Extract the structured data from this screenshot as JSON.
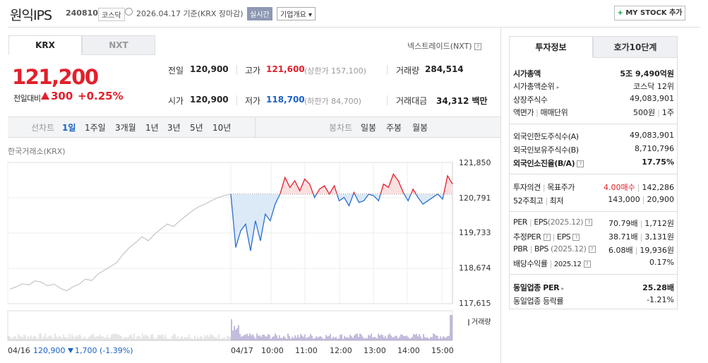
{
  "header": {
    "name": "원익IPS",
    "code": "240810",
    "market": "코스닥",
    "date": "2026.04.17 기준(KRX 장마감)",
    "realtime": "실시간",
    "overview": "기업개요 ▾",
    "mystock": "MY STOCK 추가",
    "mystock_plus": "+"
  },
  "tabs": {
    "krx": "KRX",
    "nxt": "NXT",
    "nxt_label": "넥스트레이드(NXT)"
  },
  "price": {
    "current": "121,200",
    "prev_label": "전일대비",
    "change": "300",
    "change_pct": "+0.25%"
  },
  "quote": {
    "prev_label": "전일",
    "prev": "120,900",
    "high_label": "고가",
    "high": "121,600",
    "upper_limit": "(상한가 157,100)",
    "volume_label": "거래량",
    "volume": "284,514",
    "open_label": "시가",
    "open": "120,900",
    "low_label": "저가",
    "low": "118,700",
    "lower_limit": "(하한가 84,700)",
    "amount_label": "거래대금",
    "amount": "34,312",
    "amount_unit": "백만"
  },
  "period_bar": {
    "line_label": "선차트",
    "periods": [
      "1일",
      "1주일",
      "3개월",
      "1년",
      "3년",
      "5년",
      "10년"
    ],
    "active": "1일",
    "candle_label": "봉차트",
    "candles": [
      "일봉",
      "주봉",
      "월봉"
    ]
  },
  "chart_data": {
    "type": "line",
    "title": "한국거래소(KRX)",
    "y_ticks": [
      "121,850",
      "120,791",
      "119,733",
      "118,674",
      "117,615"
    ],
    "ylim": [
      117615,
      121850
    ],
    "baseline": 120900,
    "x_ticks": [
      "04/16",
      "04/17",
      "10:00",
      "11:00",
      "12:00",
      "13:00",
      "14:00",
      "15:00"
    ],
    "volume_label": "거래량",
    "prev_day_series": [
      118050,
      118120,
      118210,
      118180,
      118300,
      118260,
      118150,
      118200,
      118080,
      118000,
      118120,
      118200,
      118350,
      118310,
      118500,
      118620,
      118730,
      118850,
      119100,
      119300,
      119450,
      119620,
      119500,
      119700,
      119850,
      120000,
      119930,
      120100,
      120250,
      120400,
      120520,
      120600,
      120700,
      120790,
      120850,
      120900
    ],
    "today_series": [
      120900,
      119300,
      119800,
      120000,
      119200,
      120100,
      119500,
      120300,
      120100,
      120600,
      120900,
      121400,
      121100,
      121300,
      121000,
      121350,
      121200,
      120800,
      121050,
      121150,
      120900,
      121150,
      120700,
      120800,
      120550,
      120950,
      120650,
      120700,
      120900,
      120850,
      120700,
      121200,
      121100,
      121500,
      121300,
      120950,
      120700,
      121050,
      120800,
      120600,
      120700,
      120800,
      120900,
      120750,
      121450,
      121200
    ]
  },
  "prev_day_info": {
    "price": "120,900",
    "change": "1,700",
    "pct": "(-1.39%)"
  },
  "right": {
    "tab_invest": "투자정보",
    "tab_hoga": "호가10단계",
    "rows": {
      "mktcap_label": "시가총액",
      "mktcap": "5조 9,490억원",
      "mktcap_rank_label": "시가총액순위",
      "mktcap_rank": "코스닥 12위",
      "shares_label": "상장주식수",
      "shares": "49,083,901",
      "par_label": "액면가",
      "trade_unit_label": "매매단위",
      "par": "500원",
      "trade_unit": "1주",
      "foreign_limit_label": "외국인한도주식수(A)",
      "foreign_limit": "49,083,901",
      "foreign_hold_label": "외국인보유주식수(B)",
      "foreign_hold": "8,710,796",
      "foreign_ratio_label": "외국인소진율(B/A)",
      "foreign_ratio": "17.75%",
      "opinion_label": "투자의견",
      "target_label": "목표주가",
      "opinion": "4.00매수",
      "target": "142,286",
      "w52_label_high": "52주최고",
      "w52_label_low": "최저",
      "w52_high": "143,000",
      "w52_low": "20,900",
      "per_label": "PER",
      "eps_label": "EPS",
      "eps_year": "(2025.12)",
      "per": "70.79배",
      "eps": "1,712원",
      "est_per_label": "추정PER",
      "est_eps_label": "EPS",
      "est_per": "38.71배",
      "est_eps": "3,131원",
      "pbr_label": "PBR",
      "bps_label": "BPS",
      "bps_year": "(2025.12)",
      "pbr": "6.08배",
      "bps": "19,936원",
      "div_label": "배당수익률",
      "div_year": "2025.12",
      "div": "0.17%",
      "industry_per_label": "동일업종 PER",
      "industry_per": "25.28배",
      "industry_chg_label": "동일업종 등락률",
      "industry_chg": "-1.21%"
    }
  }
}
